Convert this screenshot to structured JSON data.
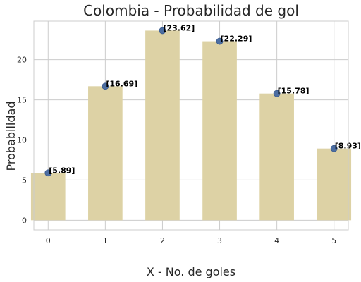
{
  "chart_data": {
    "type": "bar",
    "title": "Colombia - Probabilidad de gol",
    "xlabel": "X - No. de goles",
    "ylabel": "Probabilidad",
    "categories": [
      0,
      1,
      2,
      3,
      4,
      5
    ],
    "values": [
      5.89,
      16.69,
      23.62,
      22.29,
      15.78,
      8.93
    ],
    "data_labels": [
      "[5.89]",
      "[16.69]",
      "[23.62]",
      "[22.29]",
      "[15.78]",
      "[8.93]"
    ],
    "yticks": [
      0,
      5,
      10,
      15,
      20
    ],
    "ylim": [
      -1.2,
      24.8
    ],
    "xlim": [
      -0.25,
      5.25
    ],
    "bar_color": "#ddd2a5",
    "point_color": "#4c6ea2",
    "grid": true,
    "legend": "none"
  }
}
